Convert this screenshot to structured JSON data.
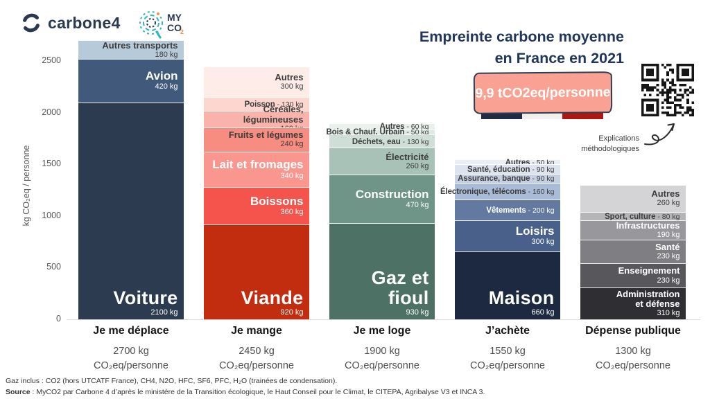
{
  "header": {
    "carbone4_wordmark": "carbone4",
    "myco2": {
      "line1": "MY",
      "line2": "CO",
      "sub": "2"
    },
    "title_line1": "Empreinte carbone moyenne",
    "title_line2": "en France en 2021",
    "badge_value": "9,9 tCO2eq/personne",
    "methodology_line1": "Explications",
    "methodology_line2": "méthodologiques"
  },
  "chart_data": {
    "type": "bar",
    "stacked": true,
    "title": "Empreinte carbone moyenne en France en 2021",
    "ylabel": "kg CO₂eq / personne",
    "yticks": [
      0,
      500,
      1000,
      1500,
      2000,
      2500
    ],
    "ylim": [
      0,
      2700
    ],
    "unit": "kg CO2eq/personne",
    "grid": false,
    "legend": "labels inside segments",
    "categories": [
      {
        "label": "Je me déplace",
        "total_kg": 2700,
        "total_label": "2700 kg",
        "total_unit": "CO₂eq/personne",
        "segments": [
          {
            "name": "Voiture",
            "value": 2100,
            "value_label": "2100 kg",
            "color": "#2c3b50",
            "text": "light",
            "display": "xl"
          },
          {
            "name": "Avion",
            "value": 420,
            "value_label": "420 kg",
            "color": "#41597a",
            "text": "light",
            "display": "lg"
          },
          {
            "name": "Autres transports",
            "value": 180,
            "value_label": "180 kg",
            "color": "#b7cada",
            "text": "dark",
            "display": "md"
          }
        ]
      },
      {
        "label": "Je mange",
        "total_kg": 2450,
        "total_label": "2450 kg",
        "total_unit": "CO₂eq/personne",
        "segments": [
          {
            "name": "Viande",
            "value": 920,
            "value_label": "920 kg",
            "color": "#c22d10",
            "text": "light",
            "display": "xl"
          },
          {
            "name": "Boissons",
            "value": 360,
            "value_label": "360 kg",
            "color": "#f4544c",
            "text": "light",
            "display": "lg"
          },
          {
            "name": "Lait et fromages",
            "value": 340,
            "value_label": "340 kg",
            "color": "#f9968e",
            "text": "light",
            "display": "lg"
          },
          {
            "name": "Fruits et légumes",
            "value": 240,
            "value_label": "240 kg",
            "color": "#f78d80",
            "text": "dark",
            "display": "md"
          },
          {
            "name": "Céréales, légumineuses",
            "value": 160,
            "value_label": "160 kg",
            "color": "#fab3ab",
            "text": "dark",
            "display": "md"
          },
          {
            "name": "Poisson",
            "value": 130,
            "value_label": "130 kg",
            "color": "#fcd6cf",
            "text": "dark",
            "display": "inline"
          },
          {
            "name": "Autres",
            "value": 300,
            "value_label": "300 kg",
            "color": "#fdece8",
            "text": "dark",
            "display": "md"
          }
        ]
      },
      {
        "label": "Je me loge",
        "total_kg": 1900,
        "total_label": "1900 kg",
        "total_unit": "CO₂eq/personne",
        "segments": [
          {
            "name": "Gaz et fioul",
            "value": 930,
            "value_label": "930 kg",
            "color": "#4d7265",
            "text": "light",
            "display": "xl"
          },
          {
            "name": "Construction",
            "value": 470,
            "value_label": "470 kg",
            "color": "#6f9488",
            "text": "light",
            "display": "lg"
          },
          {
            "name": "Électricité",
            "value": 260,
            "value_label": "260 kg",
            "color": "#a8c2b8",
            "text": "dark",
            "display": "md"
          },
          {
            "name": "Déchets, eau",
            "value": 130,
            "value_label": "130 kg",
            "color": "#cfdfd7",
            "text": "dark",
            "display": "inline"
          },
          {
            "name": "Bois & Chauf. Urbain",
            "value": 50,
            "value_label": "50 kg",
            "color": "#dfeae4",
            "text": "dark",
            "display": "inline"
          },
          {
            "name": "Autres",
            "value": 60,
            "value_label": "60 kg",
            "color": "#eaf1ed",
            "text": "dark",
            "display": "inline"
          }
        ]
      },
      {
        "label": "J’achète",
        "total_kg": 1550,
        "total_label": "1550 kg",
        "total_unit": "CO₂eq/personne",
        "segments": [
          {
            "name": "Maison",
            "value": 660,
            "value_label": "660 kg",
            "color": "#1d2940",
            "text": "light",
            "display": "xl"
          },
          {
            "name": "Loisirs",
            "value": 300,
            "value_label": "300 kg",
            "color": "#48608a",
            "text": "light",
            "display": "lg"
          },
          {
            "name": "Vêtements",
            "value": 200,
            "value_label": "200 kg",
            "color": "#64799f",
            "text": "light",
            "display": "inline"
          },
          {
            "name": "Électronique, télécoms",
            "value": 160,
            "value_label": "160 kg",
            "color": "#aabbd7",
            "text": "dark",
            "display": "inline"
          },
          {
            "name": "Assurance, banque",
            "value": 90,
            "value_label": "90 kg",
            "color": "#c6d0e3",
            "text": "dark",
            "display": "inline"
          },
          {
            "name": "Santé, éducation",
            "value": 90,
            "value_label": "90 kg",
            "color": "#dde3ef",
            "text": "dark",
            "display": "inline"
          },
          {
            "name": "Autres",
            "value": 50,
            "value_label": "50 kg",
            "color": "#ebeff5",
            "text": "dark",
            "display": "inline"
          }
        ]
      },
      {
        "label": "Dépense publique",
        "total_kg": 1300,
        "total_label": "1300 kg",
        "total_unit": "CO₂eq/personne",
        "segments": [
          {
            "name": "Administration\net défense",
            "value": 310,
            "value_label": "310 kg",
            "color": "#2f2f33",
            "text": "light",
            "display": "md"
          },
          {
            "name": "Enseignement",
            "value": 230,
            "value_label": "230 kg",
            "color": "#58585c",
            "text": "light",
            "display": "md"
          },
          {
            "name": "Santé",
            "value": 230,
            "value_label": "230 kg",
            "color": "#7f7f83",
            "text": "light",
            "display": "md"
          },
          {
            "name": "Infrastructures",
            "value": 190,
            "value_label": "190 kg",
            "color": "#98989c",
            "text": "light",
            "display": "md"
          },
          {
            "name": "Sport, culture",
            "value": 80,
            "value_label": "80 kg",
            "color": "#b5b5b8",
            "text": "dark",
            "display": "inline"
          },
          {
            "name": "Autres",
            "value": 260,
            "value_label": "260 kg",
            "color": "#d4d4d6",
            "text": "dark",
            "display": "md"
          }
        ]
      }
    ]
  },
  "footnotes": {
    "line1": "Gaz inclus : CO2 (hors UTCATF France), CH4, N2O, HFC, SF6, PFC, H₂O (trainées de condensation).",
    "line2_label": "Source",
    "line2_text": " : MyCO2 par Carbone 4 d’après le ministère de la Transition écologique, le Haut Conseil pour le Climat, le CITEPA, Agribalyse V3 et INCA 3."
  },
  "colors": {
    "badge_fill": "#f9a192",
    "navy": "#2b3950",
    "flag_blue": "#202b45",
    "flag_white": "#f1f0ee",
    "flag_red": "#ab1912"
  }
}
